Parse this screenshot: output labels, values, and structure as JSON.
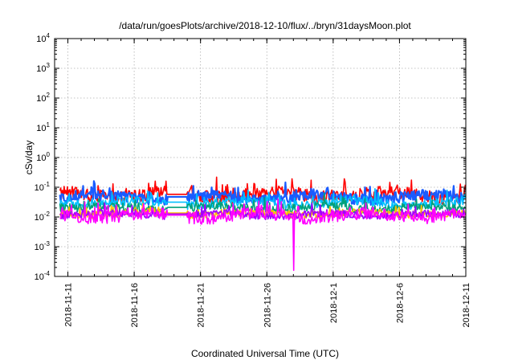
{
  "chart_data": {
    "type": "line",
    "title": "/data/run/goesPlots/archive/2018-12-10/flux/../bryn/31daysMoon.plot",
    "xlabel": "Coordinated Universal Time (UTC)",
    "ylabel": "cSv/day",
    "yscale": "log",
    "ylim": [
      0.0001,
      10000
    ],
    "xlim": [
      "2018-11-10",
      "2018-12-11"
    ],
    "x_ticks": [
      "2018-11-11",
      "2018-11-16",
      "2018-11-21",
      "2018-11-26",
      "2018-12-1",
      "2018-12-6",
      "2018-12-11"
    ],
    "y_ticks": [
      {
        "base": "10",
        "exp": "-4"
      },
      {
        "base": "10",
        "exp": "-3"
      },
      {
        "base": "10",
        "exp": "-2"
      },
      {
        "base": "10",
        "exp": "-1"
      },
      {
        "base": "10",
        "exp": "0"
      },
      {
        "base": "10",
        "exp": "1"
      },
      {
        "base": "10",
        "exp": "2"
      },
      {
        "base": "10",
        "exp": "3"
      },
      {
        "base": "10",
        "exp": "4"
      }
    ],
    "grid": true,
    "series": [
      {
        "color": "#ff0000",
        "base": 0.055,
        "amp": 0.55,
        "seed": 3
      },
      {
        "color": "#1a5cff",
        "base": 0.045,
        "amp": 0.45,
        "seed": 7
      },
      {
        "color": "#00bfff",
        "base": 0.03,
        "amp": 0.4,
        "seed": 11
      },
      {
        "color": "#00a07a",
        "base": 0.02,
        "amp": 0.35,
        "seed": 13
      },
      {
        "color": "#ffc000",
        "base": 0.013,
        "amp": 0.3,
        "seed": 17
      },
      {
        "color": "#a000ff",
        "base": 0.012,
        "amp": 0.3,
        "seed": 19
      },
      {
        "color": "#ff00ff",
        "base": 0.011,
        "amp": 0.5,
        "seed": 23
      }
    ],
    "gap": {
      "start": "2018-11-18T12:00",
      "end": "2018-11-20T00:00"
    },
    "dip": {
      "date": "2018-11-28T01:00",
      "value": 0.00016
    }
  }
}
